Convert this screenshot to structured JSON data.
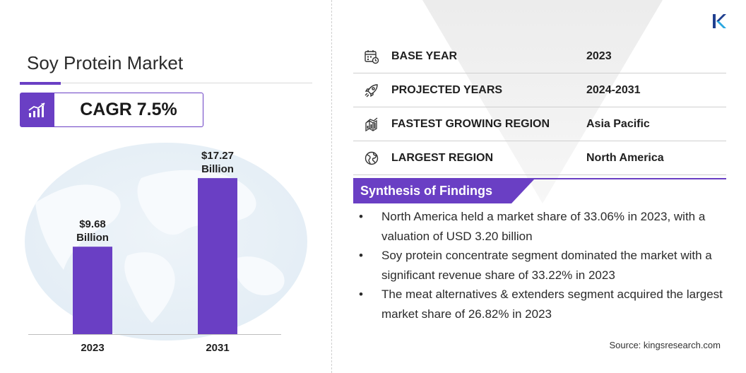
{
  "title": "Soy Protein Market",
  "cagr": "CAGR 7.5%",
  "chart_data": {
    "type": "bar",
    "categories": [
      "2023",
      "2031"
    ],
    "values": [
      9.68,
      17.27
    ],
    "value_labels": [
      "$9.68\nBillion",
      "$17.27\nBillion"
    ],
    "ylim": [
      0,
      19
    ],
    "grid": false,
    "bar_color": "#6a3fc4"
  },
  "info_rows": [
    {
      "icon": "calendar-icon",
      "label": "BASE YEAR",
      "value": "2023"
    },
    {
      "icon": "rocket-icon",
      "label": "PROJECTED YEARS",
      "value": "2024-2031"
    },
    {
      "icon": "region-growth-icon",
      "label": "FASTEST GROWING REGION",
      "value": "Asia Pacific"
    },
    {
      "icon": "globe-icon",
      "label": "LARGEST REGION",
      "value": "North America"
    }
  ],
  "synthesis": {
    "title": "Synthesis of Findings",
    "items": [
      "North America held a market share of 33.06% in 2023, with a valuation of USD 3.20 billion",
      "Soy protein concentrate segment dominated the market with a significant revenue share of 33.22% in 2023",
      "The meat alternatives & extenders segment acquired the largest market share of 26.82% in 2023"
    ]
  },
  "bullet": "•",
  "source": "Source:  kingsresearch.com",
  "colors": {
    "accent": "#6a3fc4",
    "text": "#222222",
    "rule": "#cfcfcf"
  }
}
